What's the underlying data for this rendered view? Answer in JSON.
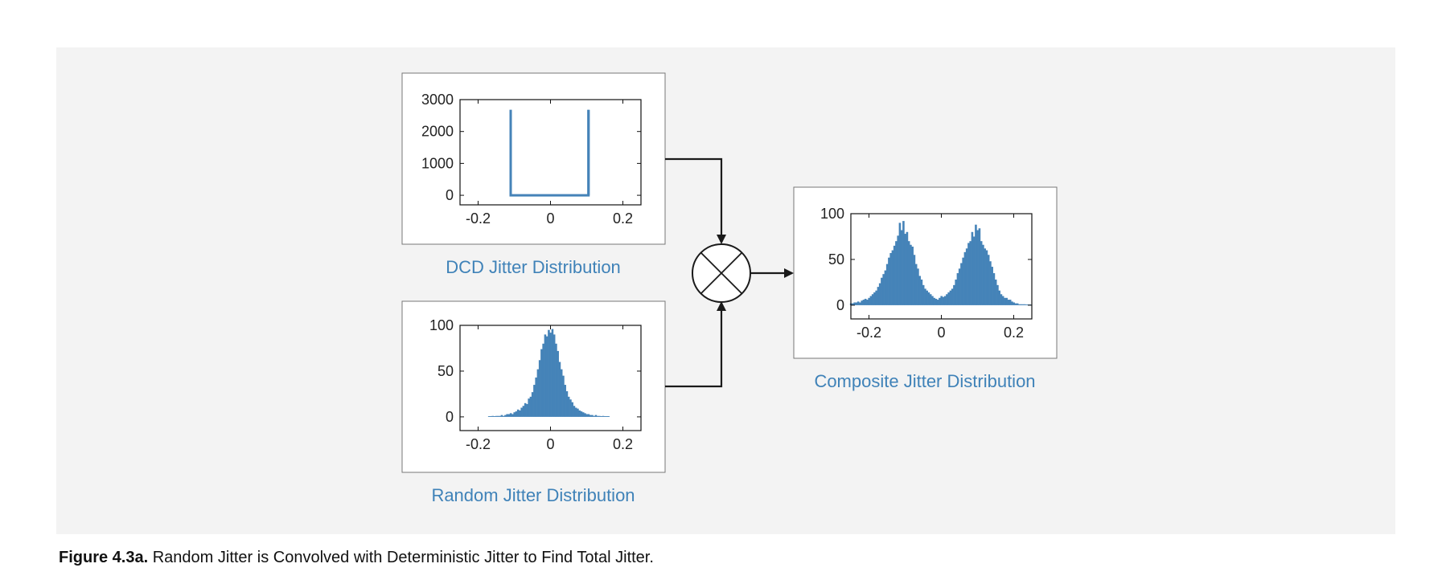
{
  "colors": {
    "bars": "#4583b8",
    "title": "#3f82b8",
    "frame": "#777777",
    "panel": "#f3f3f3",
    "arrow": "#1a1a1a"
  },
  "operator": {
    "icon": "convolution-operator-icon"
  },
  "caption": {
    "label": "Figure 4.3a.",
    "text": "Random Jitter is Convolved with Deterministic Jitter to Find Total Jitter."
  },
  "chart_data": [
    {
      "id": "dcd",
      "type": "bar",
      "title": "DCD Jitter Distribution",
      "xlim": [
        -0.25,
        0.25
      ],
      "ylim": [
        -300,
        3000
      ],
      "xticks": [
        "-0.2",
        "0",
        "0.2"
      ],
      "xtick_values": [
        -0.2,
        0,
        0.2
      ],
      "yticks": [
        "3000",
        "2000",
        "1000",
        "0"
      ],
      "ytick_values": [
        3000,
        2000,
        1000,
        0
      ],
      "x": [
        -0.11,
        0.0,
        0.105
      ],
      "values": [
        2680,
        0,
        2680
      ]
    },
    {
      "id": "random",
      "type": "bar",
      "title": "Random Jitter Distribution",
      "xlim": [
        -0.25,
        0.25
      ],
      "ylim": [
        -15,
        100
      ],
      "xticks": [
        "-0.2",
        "0",
        "0.2"
      ],
      "xtick_values": [
        -0.2,
        0,
        0.2
      ],
      "yticks": [
        "100",
        "50",
        "0"
      ],
      "ytick_values": [
        100,
        50,
        0
      ],
      "x": [
        -0.17,
        -0.165,
        -0.16,
        -0.155,
        -0.15,
        -0.145,
        -0.14,
        -0.135,
        -0.13,
        -0.125,
        -0.12,
        -0.115,
        -0.11,
        -0.105,
        -0.1,
        -0.095,
        -0.09,
        -0.085,
        -0.08,
        -0.075,
        -0.07,
        -0.065,
        -0.06,
        -0.055,
        -0.05,
        -0.045,
        -0.04,
        -0.035,
        -0.03,
        -0.025,
        -0.02,
        -0.015,
        -0.01,
        -0.005,
        0,
        0.005,
        0.01,
        0.015,
        0.02,
        0.025,
        0.03,
        0.035,
        0.04,
        0.045,
        0.05,
        0.055,
        0.06,
        0.065,
        0.07,
        0.075,
        0.08,
        0.085,
        0.09,
        0.095,
        0.1,
        0.105,
        0.11,
        0.115,
        0.12,
        0.125,
        0.13,
        0.135,
        0.14,
        0.145,
        0.15,
        0.155,
        0.16
      ],
      "values": [
        0,
        0,
        1,
        0,
        1,
        1,
        1,
        2,
        1,
        2,
        3,
        3,
        4,
        3,
        5,
        6,
        8,
        7,
        10,
        12,
        15,
        14,
        20,
        22,
        27,
        35,
        43,
        52,
        62,
        74,
        80,
        90,
        88,
        95,
        92,
        96,
        90,
        80,
        72,
        60,
        52,
        45,
        35,
        28,
        22,
        19,
        16,
        12,
        10,
        9,
        7,
        6,
        5,
        4,
        3,
        3,
        2,
        2,
        1,
        2,
        1,
        1,
        0,
        1,
        0,
        0,
        0
      ]
    },
    {
      "id": "composite",
      "type": "bar",
      "title": "Composite Jitter Distribution",
      "xlim": [
        -0.25,
        0.25
      ],
      "ylim": [
        -15,
        100
      ],
      "xticks": [
        "-0.2",
        "0",
        "0.2"
      ],
      "xtick_values": [
        -0.2,
        0,
        0.2
      ],
      "yticks": [
        "100",
        "50",
        "0"
      ],
      "ytick_values": [
        100,
        50,
        0
      ],
      "x": [
        -0.25,
        -0.245,
        -0.24,
        -0.235,
        -0.23,
        -0.225,
        -0.22,
        -0.215,
        -0.21,
        -0.205,
        -0.2,
        -0.195,
        -0.19,
        -0.185,
        -0.18,
        -0.175,
        -0.17,
        -0.165,
        -0.16,
        -0.155,
        -0.15,
        -0.145,
        -0.14,
        -0.135,
        -0.13,
        -0.125,
        -0.12,
        -0.115,
        -0.11,
        -0.105,
        -0.1,
        -0.095,
        -0.09,
        -0.085,
        -0.08,
        -0.075,
        -0.07,
        -0.065,
        -0.06,
        -0.055,
        -0.05,
        -0.045,
        -0.04,
        -0.035,
        -0.03,
        -0.025,
        -0.02,
        -0.015,
        -0.01,
        -0.005,
        0,
        0.005,
        0.01,
        0.015,
        0.02,
        0.025,
        0.03,
        0.035,
        0.04,
        0.045,
        0.05,
        0.055,
        0.06,
        0.065,
        0.07,
        0.075,
        0.08,
        0.085,
        0.09,
        0.095,
        0.1,
        0.105,
        0.11,
        0.115,
        0.12,
        0.125,
        0.13,
        0.135,
        0.14,
        0.145,
        0.15,
        0.155,
        0.16,
        0.165,
        0.17,
        0.175,
        0.18,
        0.185,
        0.19,
        0.195,
        0.2,
        0.205,
        0.21,
        0.215,
        0.22,
        0.225,
        0.23,
        0.235,
        0.24,
        0.245
      ],
      "values": [
        2,
        2,
        3,
        3,
        4,
        3,
        5,
        6,
        7,
        6,
        8,
        10,
        12,
        14,
        16,
        20,
        24,
        30,
        34,
        38,
        45,
        52,
        57,
        60,
        65,
        70,
        76,
        90,
        82,
        92,
        78,
        80,
        70,
        66,
        64,
        55,
        45,
        40,
        32,
        28,
        22,
        18,
        16,
        14,
        12,
        10,
        8,
        7,
        6,
        8,
        10,
        9,
        10,
        12,
        14,
        16,
        18,
        22,
        28,
        35,
        40,
        46,
        52,
        58,
        62,
        68,
        70,
        80,
        75,
        88,
        82,
        84,
        70,
        66,
        62,
        60,
        55,
        48,
        42,
        35,
        28,
        22,
        16,
        12,
        10,
        8,
        8,
        6,
        6,
        4,
        3,
        2,
        2,
        1,
        1,
        1,
        1,
        0,
        0,
        0
      ]
    }
  ]
}
